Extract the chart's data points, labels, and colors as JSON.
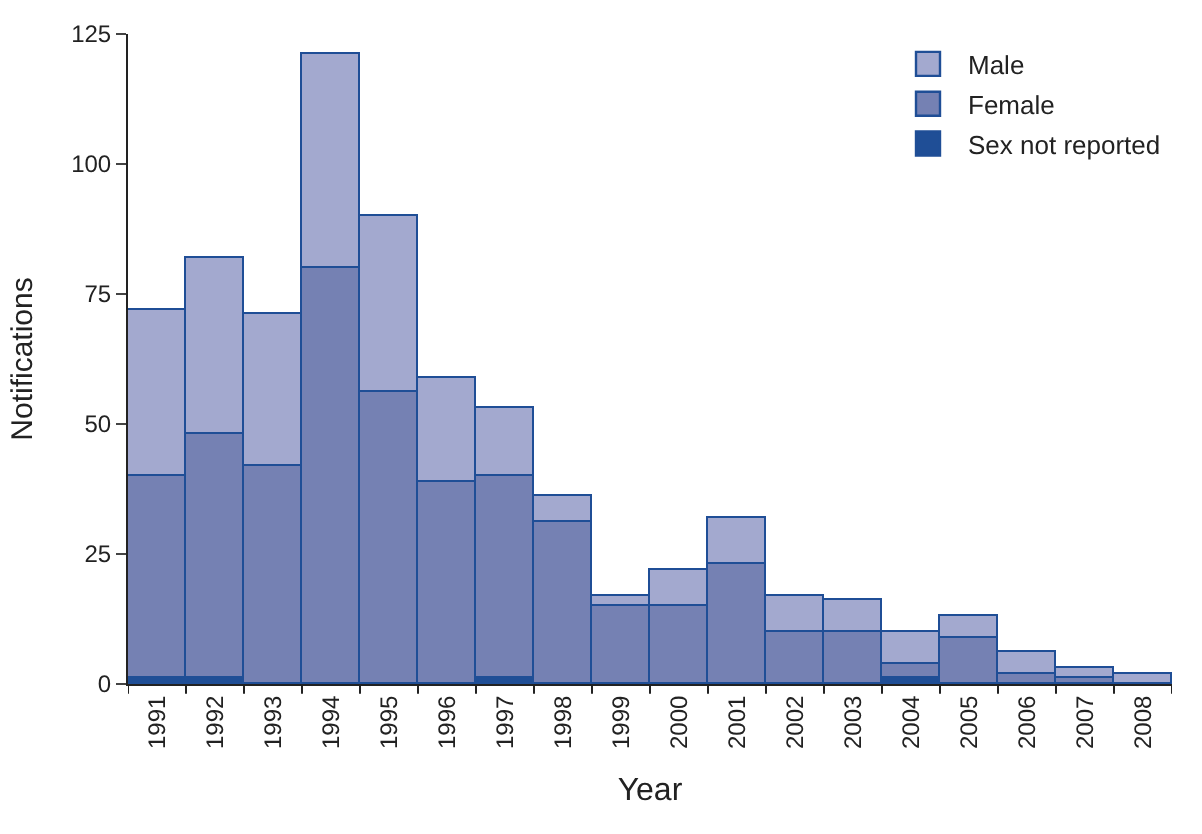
{
  "chart_data": {
    "type": "bar",
    "stacked": true,
    "xlabel": "Year",
    "ylabel": "Notifications",
    "categories": [
      "1991",
      "1992",
      "1993",
      "1994",
      "1995",
      "1996",
      "1997",
      "1998",
      "1999",
      "2000",
      "2001",
      "2002",
      "2003",
      "2004",
      "2005",
      "2006",
      "2007",
      "2008"
    ],
    "series": [
      {
        "name": "Sex not reported",
        "color": "#1f4e96",
        "values": [
          1,
          1,
          0,
          0,
          0,
          0,
          1,
          0,
          0,
          0,
          0,
          0,
          0,
          1,
          0,
          0,
          0,
          0
        ]
      },
      {
        "name": "Female",
        "color": "#7581b3",
        "values": [
          39,
          47,
          42,
          80,
          56,
          39,
          39,
          31,
          15,
          15,
          23,
          10,
          10,
          3,
          9,
          2,
          1,
          0
        ]
      },
      {
        "name": "Male",
        "color": "#a3a9cf",
        "values": [
          32,
          34,
          29,
          41,
          34,
          20,
          13,
          5,
          2,
          7,
          9,
          7,
          6,
          6,
          4,
          4,
          2,
          2
        ]
      }
    ],
    "ylim": [
      0,
      125
    ],
    "yticks": [
      0,
      25,
      50,
      75,
      100,
      125
    ],
    "legend": "top right"
  }
}
